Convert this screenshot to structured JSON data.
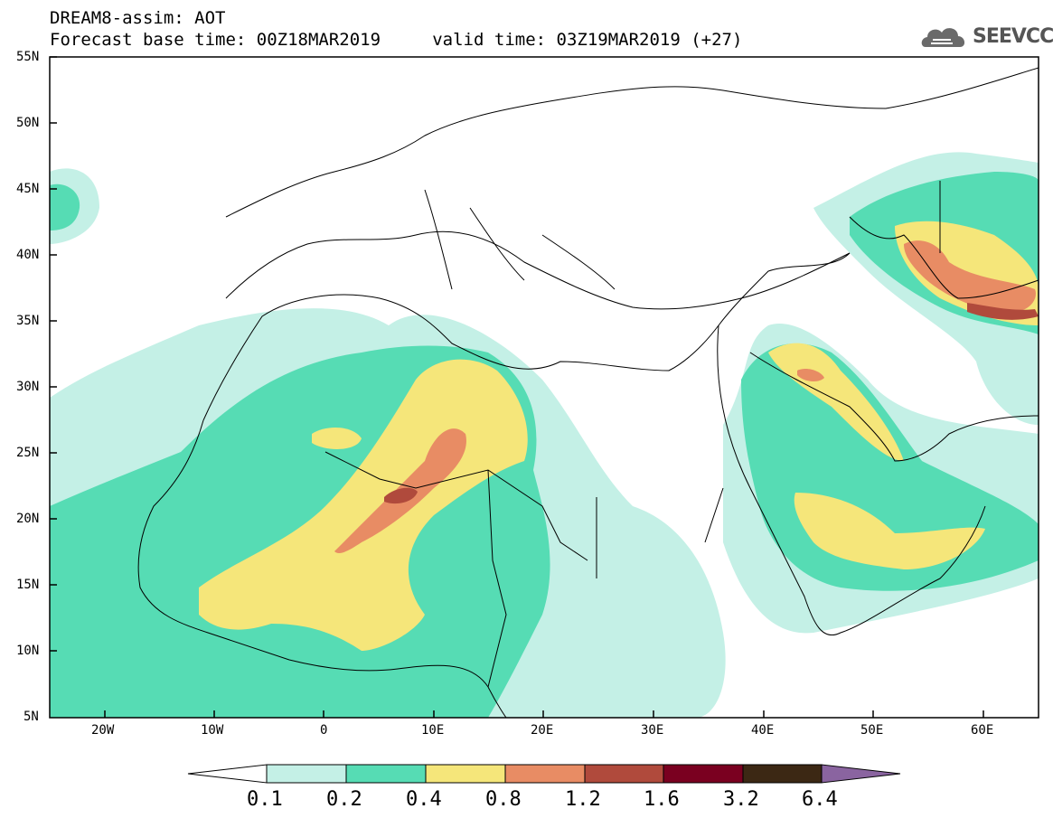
{
  "header": {
    "line1": "DREAM8-assim: AOT",
    "line2": "Forecast base time: 00Z18MAR2019     valid time: 03Z19MAR2019 (+27)",
    "logo_text": "SEEVCCC"
  },
  "map": {
    "lon_range": [
      -25,
      65
    ],
    "lat_range": [
      5,
      55
    ],
    "lat_labels": [
      "55N",
      "50N",
      "45N",
      "40N",
      "35N",
      "30N",
      "25N",
      "20N",
      "15N",
      "10N",
      "5N"
    ],
    "lon_labels": [
      "20W",
      "10W",
      "0",
      "10E",
      "20E",
      "30E",
      "40E",
      "50E",
      "60E"
    ],
    "variable": "AOT"
  },
  "colorbar": {
    "colors": [
      "#ffffff",
      "#c4f0e6",
      "#56dcb4",
      "#f5e67a",
      "#e88c64",
      "#b04a3c",
      "#7a0020",
      "#3c2814",
      "#8a64a0"
    ],
    "labels": [
      "0.1",
      "0.2",
      "0.4",
      "0.8",
      "1.2",
      "1.6",
      "3.2",
      "6.4"
    ]
  }
}
